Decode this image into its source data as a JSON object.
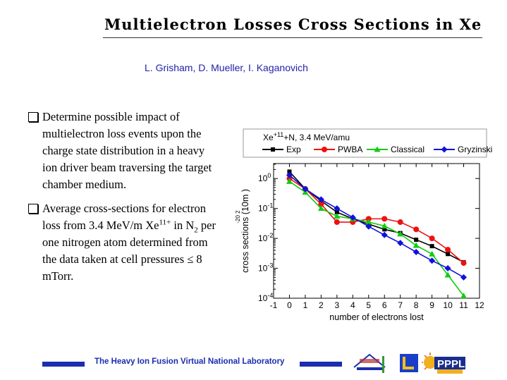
{
  "slide": {
    "title": "Multielectron Losses Cross Sections in Xe",
    "authors": "L. Grisham, D. Mueller, I. Kaganovich",
    "bullets": [
      {
        "parts": [
          "Determine possible impact of multielectron loss events upon the charge state distribution in a heavy ion driver beam traversing the target chamber medium."
        ]
      },
      {
        "before": "Average cross-sections for electron loss from 3.4 MeV/m Xe",
        "sup": "11+",
        "mid": " in N",
        "sub": "2",
        "after": " per one nitrogen atom determined from the data taken at cell pressures ≤ 8 mTorr."
      }
    ],
    "footer": "The Heavy Ion Fusion Virtual National Laboratory",
    "logos": {
      "left": "BERKELEY LAB",
      "mid": "LLNL",
      "right": "PPPL"
    }
  },
  "chart_data": {
    "type": "line",
    "title_prefix": "Xe",
    "title_sup": "+11",
    "title_suffix": "+N, 3.4 MeV/amu",
    "xlabel": "number of electrons lost",
    "ylabel": "cross sections (10m )",
    "ylabel_sup": "-20  2",
    "xlim": [
      -1,
      12
    ],
    "xticks": [
      "-1",
      "0",
      "1",
      "2",
      "3",
      "4",
      "5",
      "6",
      "7",
      "8",
      "9",
      "10",
      "11",
      "12"
    ],
    "ylog": true,
    "ylim_exp": [
      -4,
      0.5
    ],
    "yticks_exp": [
      0,
      -1,
      -2,
      -3,
      -4
    ],
    "ytick_base": "10",
    "legend_position": "top",
    "series": [
      {
        "name": "Exp",
        "color": "#000000",
        "marker": "square",
        "x": [
          0,
          1,
          2,
          3,
          4,
          5,
          6,
          7,
          8,
          9,
          10,
          11
        ],
        "y": [
          1.7,
          0.45,
          0.18,
          0.075,
          0.045,
          0.03,
          0.02,
          0.015,
          0.009,
          0.0055,
          0.003,
          0.0016
        ]
      },
      {
        "name": "PWBA",
        "color": "#ee1111",
        "marker": "circle",
        "x": [
          0,
          1,
          2,
          3,
          4,
          5,
          6,
          7,
          8,
          9,
          10,
          11
        ],
        "y": [
          1.0,
          0.45,
          0.14,
          0.035,
          0.035,
          0.045,
          0.045,
          0.035,
          0.02,
          0.01,
          0.0042,
          0.0015
        ]
      },
      {
        "name": "Classical",
        "color": "#11cc11",
        "marker": "triangle",
        "x": [
          0,
          1,
          2,
          3,
          4,
          5,
          6,
          7,
          8,
          9,
          10,
          11
        ],
        "y": [
          0.8,
          0.35,
          0.1,
          0.055,
          0.045,
          0.035,
          0.026,
          0.014,
          0.0058,
          0.003,
          0.0006,
          0.00012
        ]
      },
      {
        "name": "Gryzinski",
        "color": "#1111dd",
        "marker": "diamond",
        "x": [
          0,
          1,
          2,
          3,
          4,
          5,
          6,
          7,
          8,
          9,
          10,
          11
        ],
        "y": [
          1.3,
          0.45,
          0.2,
          0.1,
          0.05,
          0.025,
          0.013,
          0.007,
          0.0035,
          0.0018,
          0.001,
          0.0005
        ]
      }
    ]
  }
}
